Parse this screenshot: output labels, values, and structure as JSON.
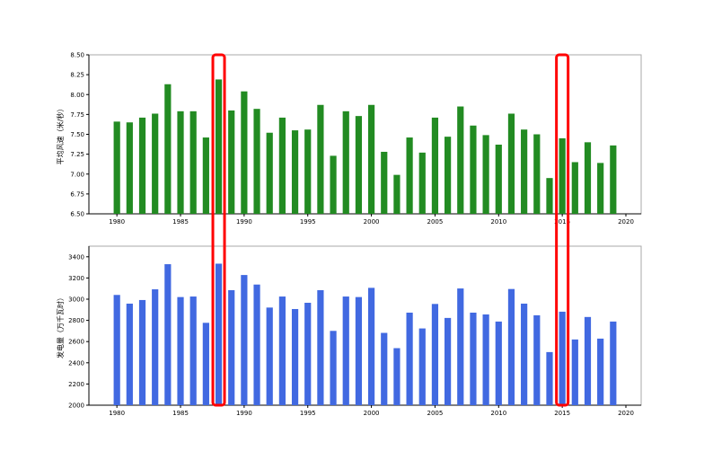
{
  "chart_data": [
    {
      "type": "bar",
      "ylabel": "平均风速（米/秒）",
      "xlabel": "",
      "color": "#228b22",
      "x": [
        1980,
        1981,
        1982,
        1983,
        1984,
        1985,
        1986,
        1987,
        1988,
        1989,
        1990,
        1991,
        1992,
        1993,
        1994,
        1995,
        1996,
        1997,
        1998,
        1999,
        2000,
        2001,
        2002,
        2003,
        2004,
        2005,
        2006,
        2007,
        2008,
        2009,
        2010,
        2011,
        2012,
        2013,
        2014,
        2015,
        2016,
        2017,
        2018,
        2019
      ],
      "values": [
        7.66,
        7.65,
        7.71,
        7.76,
        8.13,
        7.79,
        7.79,
        7.46,
        8.19,
        7.8,
        8.04,
        7.82,
        7.52,
        7.71,
        7.55,
        7.56,
        7.87,
        7.23,
        7.79,
        7.73,
        7.87,
        7.28,
        6.99,
        7.46,
        7.27,
        7.71,
        7.47,
        7.85,
        7.61,
        7.49,
        7.37,
        7.76,
        7.56,
        7.5,
        6.95,
        7.45,
        7.15,
        7.4,
        7.14,
        7.36
      ],
      "ylim": [
        6.5,
        8.5
      ],
      "xlim": [
        1977.8,
        2021.2
      ],
      "yticks": [
        "6.50",
        "6.75",
        "7.00",
        "7.25",
        "7.50",
        "7.75",
        "8.00",
        "8.25",
        "8.50"
      ],
      "xticks": [
        "1980",
        "1985",
        "1990",
        "1995",
        "2000",
        "2005",
        "2010",
        "2015",
        "2020"
      ],
      "grid": false
    },
    {
      "type": "bar",
      "ylabel": "发电量（万千瓦时）",
      "xlabel": "",
      "color": "#4169e1",
      "x": [
        1980,
        1981,
        1982,
        1983,
        1984,
        1985,
        1986,
        1987,
        1988,
        1989,
        1990,
        1991,
        1992,
        1993,
        1994,
        1995,
        1996,
        1997,
        1998,
        1999,
        2000,
        2001,
        2002,
        2003,
        2004,
        2005,
        2006,
        2007,
        2008,
        2009,
        2010,
        2011,
        2012,
        2013,
        2014,
        2015,
        2016,
        2017,
        2018,
        2019
      ],
      "values": [
        3040,
        2958,
        2992,
        3093,
        3330,
        3020,
        3025,
        2777,
        3335,
        3085,
        3228,
        3138,
        2921,
        3025,
        2907,
        2966,
        3085,
        2701,
        3025,
        3020,
        3107,
        2682,
        2538,
        2873,
        2724,
        2955,
        2823,
        3101,
        2873,
        2856,
        2789,
        3096,
        2958,
        2848,
        2501,
        2882,
        2620,
        2832,
        2628,
        2789
      ],
      "ylim": [
        2000,
        3500
      ],
      "xlim": [
        1977.8,
        2021.2
      ],
      "yticks": [
        "2000",
        "2200",
        "2400",
        "2600",
        "2800",
        "3000",
        "3200",
        "3400"
      ],
      "xticks": [
        "1980",
        "1985",
        "1990",
        "1995",
        "2000",
        "2005",
        "2010",
        "2015",
        "2020"
      ],
      "grid": false
    }
  ],
  "highlights": {
    "years": [
      1988,
      2015
    ],
    "color": "#ff0000"
  }
}
